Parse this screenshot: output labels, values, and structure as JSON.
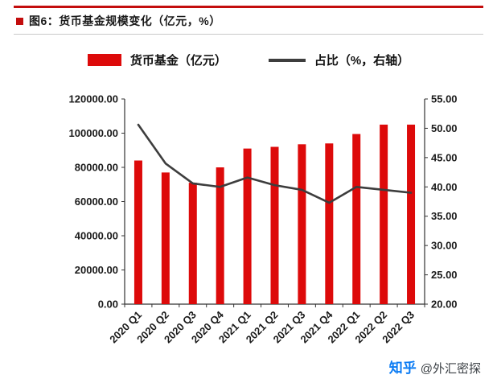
{
  "colors": {
    "accent_red": "#c30d0d",
    "bar_red": "#dd0a0a",
    "line_dark": "#3d3d3d",
    "axis": "#333333",
    "zhihu_blue": "#0a7bf4"
  },
  "header": {
    "title": "图6：货币基金规模变化（亿元，%）"
  },
  "legend": {
    "bar_label": "货币基金（亿元）",
    "line_label": "占比（%，右轴）"
  },
  "watermark": {
    "logo": "知乎",
    "user": "@外汇密探"
  },
  "chart_data": {
    "type": "bar+line",
    "title": "货币基金规模变化（亿元，%）",
    "categories": [
      "2020 Q1",
      "2020 Q2",
      "2020 Q3",
      "2020 Q4",
      "2021 Q1",
      "2021 Q2",
      "2021 Q3",
      "2021 Q4",
      "2022 Q1",
      "2022 Q2",
      "2022 Q3"
    ],
    "series": [
      {
        "name": "货币基金（亿元）",
        "type": "bar",
        "axis": "left",
        "color": "#dd0a0a",
        "values": [
          84000,
          77000,
          71000,
          80000,
          91000,
          92000,
          93500,
          94000,
          99500,
          105000,
          105000
        ]
      },
      {
        "name": "占比（%，右轴）",
        "type": "line",
        "axis": "right",
        "color": "#3d3d3d",
        "values": [
          50.6,
          44.0,
          40.6,
          40.0,
          41.6,
          40.3,
          39.5,
          37.3,
          40.0,
          39.5,
          39.0
        ]
      }
    ],
    "left_axis": {
      "min": 0,
      "max": 120000,
      "step": 20000,
      "ticks": [
        "120000.00",
        "100000.00",
        "80000.00",
        "60000.00",
        "40000.00",
        "20000.00",
        "0.00"
      ]
    },
    "right_axis": {
      "min": 20,
      "max": 55,
      "step": 5,
      "ticks": [
        "55.00",
        "50.00",
        "45.00",
        "40.00",
        "35.00",
        "30.00",
        "25.00",
        "20.00"
      ]
    },
    "grid": false,
    "legend_position": "top"
  }
}
